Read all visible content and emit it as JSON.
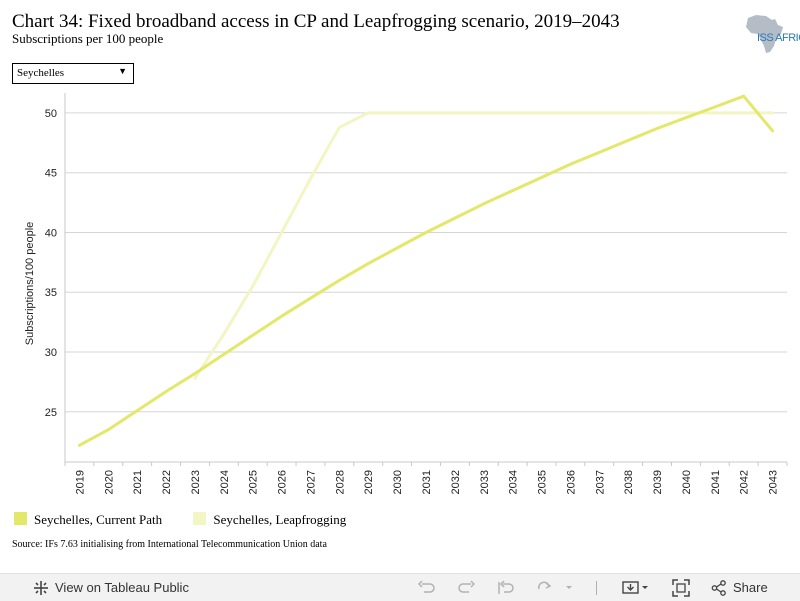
{
  "header": {
    "title": "Chart 34: Fixed broadband access in CP and Leapfrogging scenario, 2019–2043",
    "subtitle": "Subscriptions per 100 people",
    "logo_text": "ISS AFRICA"
  },
  "filter": {
    "selected": "Seychelles"
  },
  "colors": {
    "current_path": "#e3e86a",
    "leapfrogging": "#f3f5c4",
    "grid": "#d6d6d6"
  },
  "chart_data": {
    "type": "line",
    "ylabel": "Subscriptions/100 people",
    "xlabel": "",
    "ylim": [
      20.8,
      51.5
    ],
    "yticks": [
      25,
      30,
      35,
      40,
      45,
      50
    ],
    "grid": true,
    "legend_position": "bottom-left",
    "x": [
      "2019",
      "2020",
      "2021",
      "2022",
      "2023",
      "2024",
      "2025",
      "2026",
      "2027",
      "2028",
      "2029",
      "2030",
      "2031",
      "2032",
      "2033",
      "2034",
      "2035",
      "2036",
      "2037",
      "2038",
      "2039",
      "2040",
      "2041",
      "2042",
      "2043"
    ],
    "series": [
      {
        "name": "Seychelles, Current Path",
        "color": "#e3e86a",
        "values": [
          22.2,
          23.5,
          25.1,
          26.7,
          28.2,
          29.8,
          31.4,
          33.0,
          34.5,
          36.0,
          37.4,
          38.7,
          40.0,
          41.2,
          42.4,
          43.5,
          44.6,
          45.7,
          46.7,
          47.7,
          48.7,
          49.6,
          50.5,
          51.4,
          48.5
        ]
      },
      {
        "name": "Seychelles, Leapfrogging",
        "color": "#f3f5c4",
        "values": [
          null,
          null,
          null,
          null,
          27.8,
          31.5,
          35.5,
          40.0,
          44.5,
          48.8,
          50.0,
          50.0,
          50.0,
          50.0,
          50.0,
          50.0,
          50.0,
          50.0,
          50.0,
          50.0,
          50.0,
          50.0,
          50.0,
          50.0,
          50.0
        ]
      }
    ]
  },
  "legend": {
    "items": [
      {
        "label": "Seychelles, Current Path"
      },
      {
        "label": "Seychelles, Leapfrogging"
      }
    ]
  },
  "source": "Source: IFs 7.63 initialising from International Telecommunication Union data",
  "toolbar": {
    "view_label": "View on Tableau Public",
    "share_label": "Share"
  }
}
